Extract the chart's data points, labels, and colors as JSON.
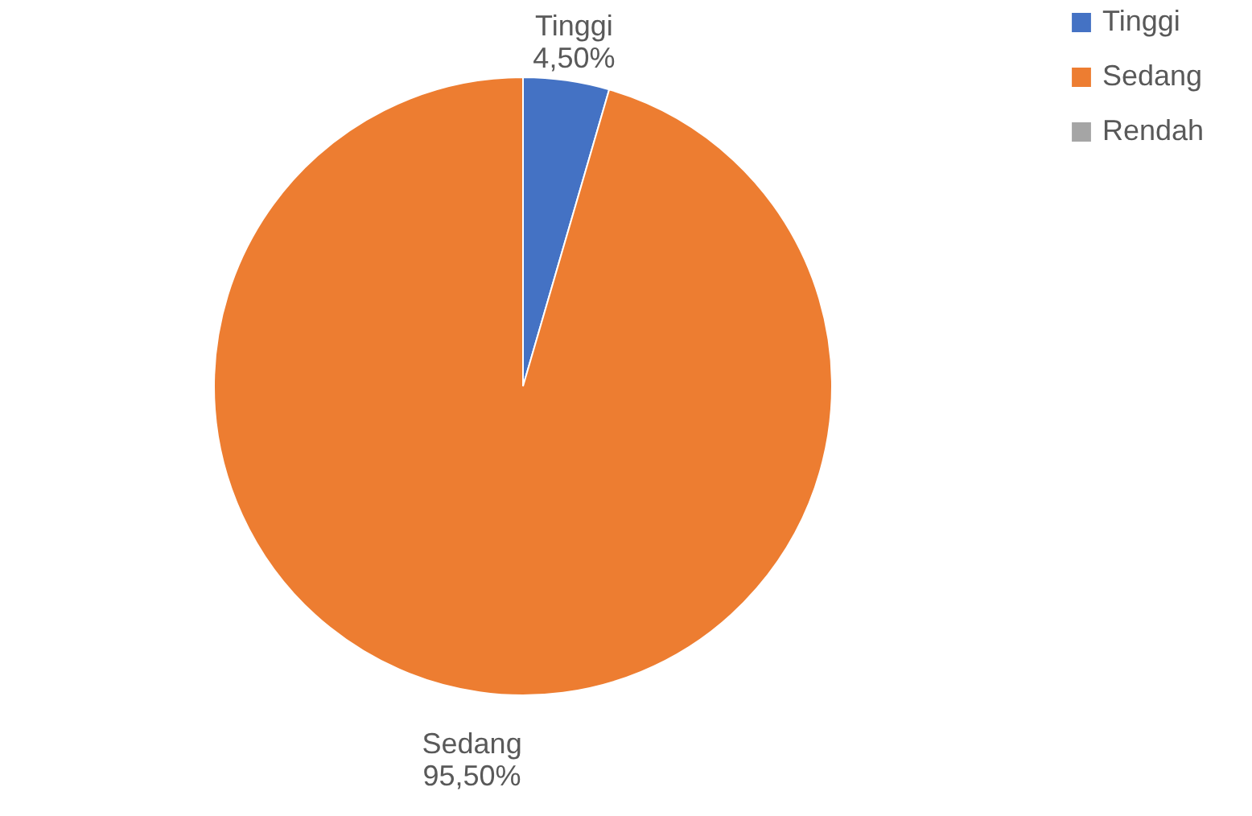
{
  "chart_data": {
    "type": "pie",
    "categories": [
      "Tinggi",
      "Sedang",
      "Rendah"
    ],
    "values": [
      4.5,
      95.5,
      0
    ],
    "colors": [
      "#4472c4",
      "#ed7d31",
      "#a5a5a5"
    ],
    "value_labels": [
      "4,50%",
      "95,50%",
      null
    ],
    "legend": "right"
  }
}
